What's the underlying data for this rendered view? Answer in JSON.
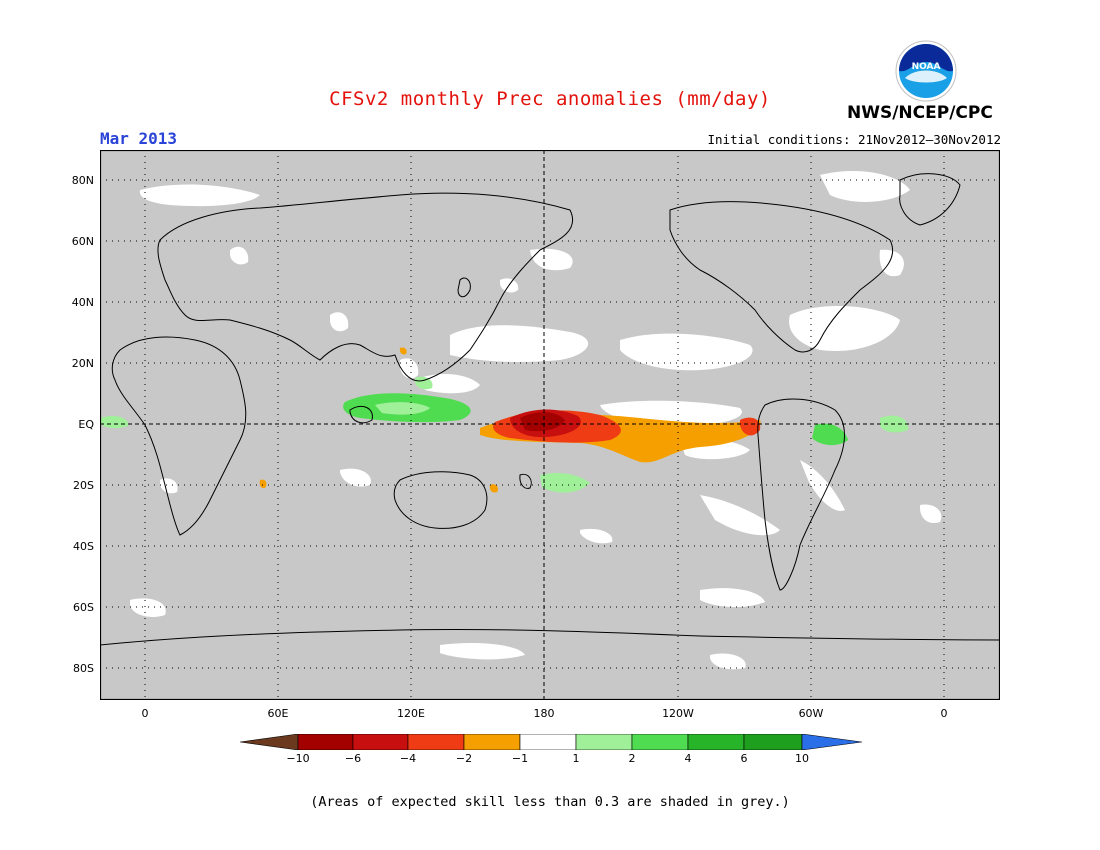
{
  "header": {
    "title": "CFSv2 monthly Prec anomalies (mm/day)",
    "month": "Mar 2013",
    "agency": "NWS/NCEP/CPC",
    "logo_text": "NOAA",
    "initial_conditions": "Initial conditions: 21Nov2012–30Nov2012"
  },
  "map": {
    "lat_labels": [
      "80N",
      "60N",
      "40N",
      "20N",
      "EQ",
      "20S",
      "40S",
      "60S",
      "80S"
    ],
    "lon_labels": [
      "0",
      "60E",
      "120E",
      "180",
      "120W",
      "60W",
      "0"
    ],
    "background_color": "#c8c8c8",
    "land_outline_color": "#000000"
  },
  "colorbar": {
    "labels": [
      "−10",
      "−6",
      "−4",
      "−2",
      "−1",
      "1",
      "2",
      "4",
      "6",
      "10"
    ],
    "colors": [
      "#6b3a1e",
      "#a30000",
      "#c80f0f",
      "#f03c14",
      "#f5a000",
      "#ffffff",
      "#a0f09a",
      "#50dc50",
      "#28b428",
      "#1ea01e",
      "#2a6ee8"
    ]
  },
  "footer": {
    "note": "(Areas of expected skill less than 0.3 are shaded in grey.)"
  }
}
